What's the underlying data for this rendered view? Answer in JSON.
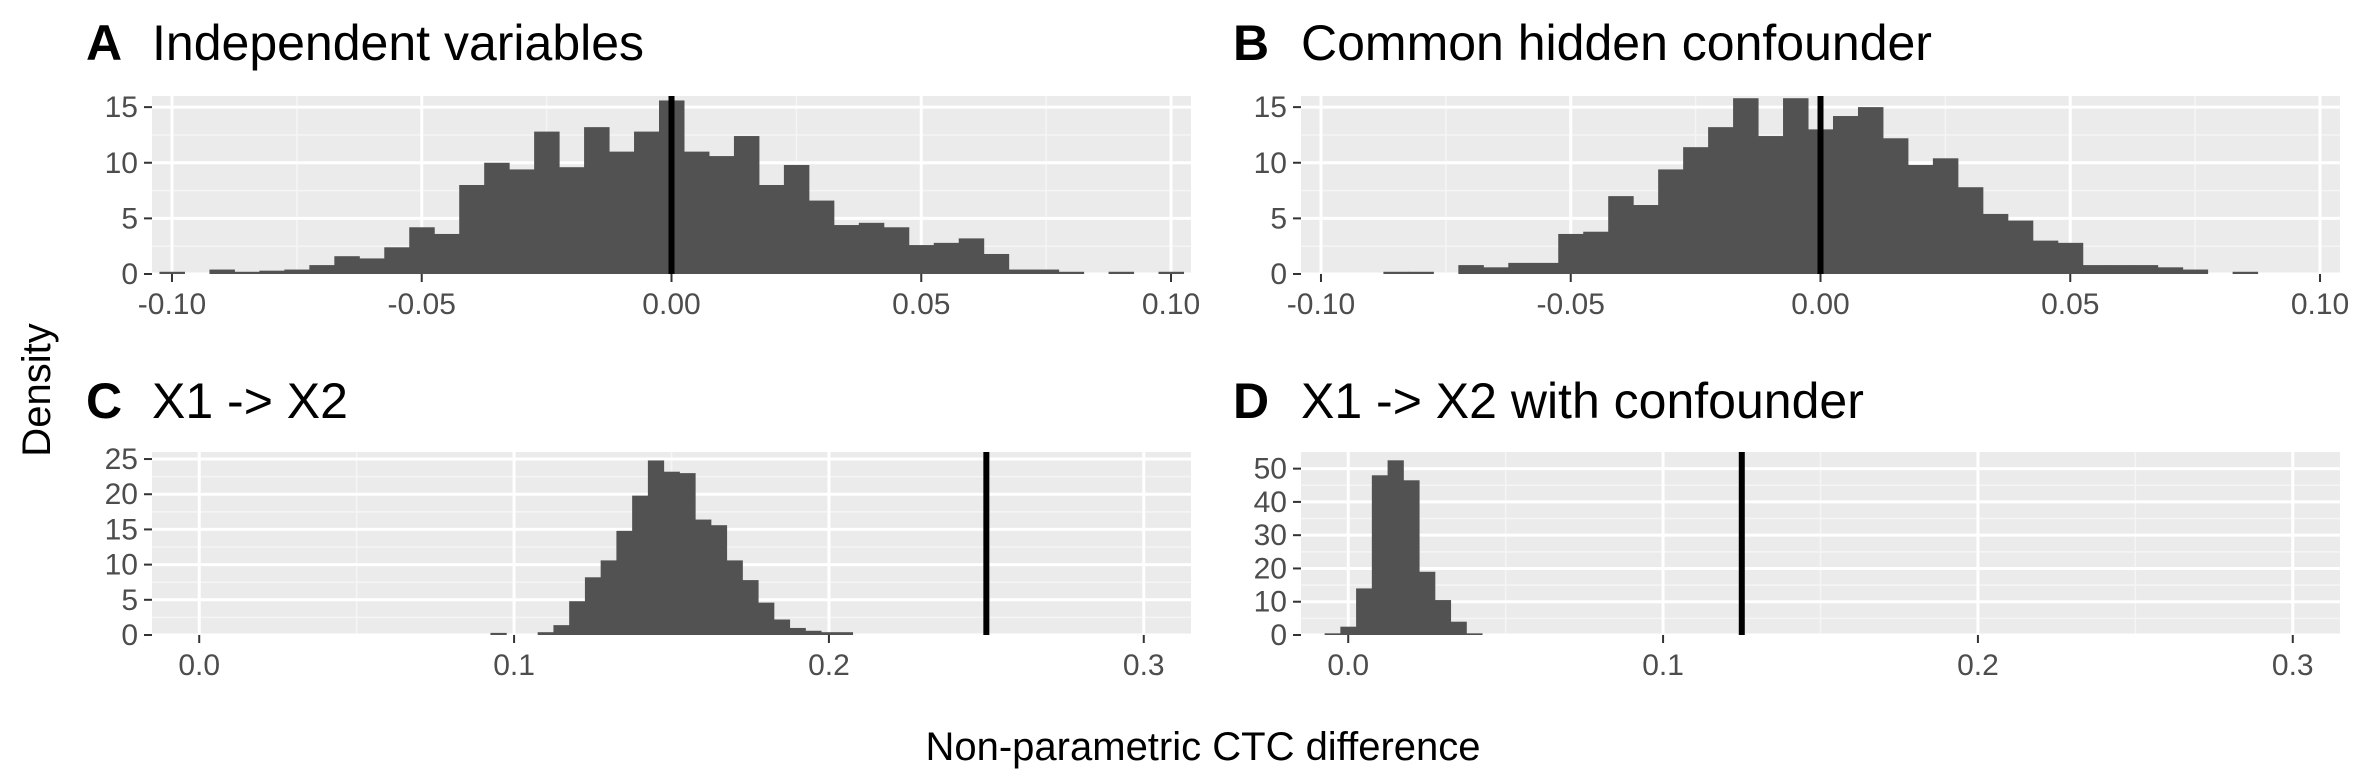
{
  "figure": {
    "xlabel": "Non-parametric CTC difference",
    "ylabel": "Density"
  },
  "colors": {
    "panel_background": "#ebebeb",
    "grid_major": "#ffffff",
    "grid_minor": "#f5f5f5",
    "bar_fill": "#525252",
    "reference_line": "#000000",
    "tick_text": "#4d4d4d"
  },
  "chart_data": [
    {
      "id": "A",
      "type": "bar",
      "letter": "A",
      "title": "Independent variables",
      "bin_width": 0.005,
      "x": [
        -0.1,
        -0.095,
        -0.09,
        -0.085,
        -0.08,
        -0.075,
        -0.07,
        -0.065,
        -0.06,
        -0.055,
        -0.05,
        -0.045,
        -0.04,
        -0.035,
        -0.03,
        -0.025,
        -0.02,
        -0.015,
        -0.01,
        -0.005,
        0.0,
        0.005,
        0.01,
        0.015,
        0.02,
        0.025,
        0.03,
        0.035,
        0.04,
        0.045,
        0.05,
        0.055,
        0.06,
        0.065,
        0.07,
        0.075,
        0.08,
        0.085,
        0.09,
        0.095,
        0.1
      ],
      "values": [
        0.2,
        0,
        0.4,
        0.2,
        0.3,
        0.4,
        0.8,
        1.6,
        1.4,
        2.4,
        4.2,
        3.6,
        8.0,
        10.0,
        9.4,
        12.8,
        9.6,
        13.2,
        11.0,
        12.8,
        15.6,
        11.0,
        10.6,
        12.4,
        8.0,
        9.8,
        6.6,
        4.4,
        4.6,
        4.2,
        2.6,
        2.8,
        3.2,
        1.8,
        0.4,
        0.4,
        0.2,
        0,
        0.2,
        0,
        0.2
      ],
      "xlim": [
        -0.104,
        0.104
      ],
      "ylim": [
        0,
        16
      ],
      "xticks": [
        -0.1,
        -0.05,
        0.0,
        0.05,
        0.1
      ],
      "xtick_labels": [
        "-0.10",
        "-0.05",
        "0.00",
        "0.05",
        "0.10"
      ],
      "yticks": [
        0,
        5,
        10,
        15
      ],
      "ytick_labels": [
        "0",
        "5",
        "10",
        "15"
      ],
      "xminor": [
        -0.075,
        -0.025,
        0.025,
        0.075
      ],
      "yminor": [
        2.5,
        7.5,
        12.5
      ],
      "vline": 0.0
    },
    {
      "id": "B",
      "type": "bar",
      "letter": "B",
      "title": "Common hidden confounder",
      "bin_width": 0.005,
      "x": [
        -0.1,
        -0.095,
        -0.09,
        -0.085,
        -0.08,
        -0.075,
        -0.07,
        -0.065,
        -0.06,
        -0.055,
        -0.05,
        -0.045,
        -0.04,
        -0.035,
        -0.03,
        -0.025,
        -0.02,
        -0.015,
        -0.01,
        -0.005,
        0.0,
        0.005,
        0.01,
        0.015,
        0.02,
        0.025,
        0.03,
        0.035,
        0.04,
        0.045,
        0.05,
        0.055,
        0.06,
        0.065,
        0.07,
        0.075,
        0.08,
        0.085,
        0.09,
        0.095,
        0.1
      ],
      "values": [
        0,
        0,
        0,
        0.2,
        0.2,
        0,
        0.8,
        0.6,
        1.0,
        1.0,
        3.6,
        3.8,
        7.0,
        6.2,
        9.4,
        11.4,
        13.2,
        15.8,
        12.4,
        15.8,
        13.0,
        14.2,
        15.0,
        12.2,
        9.8,
        10.4,
        7.8,
        5.4,
        4.8,
        3.0,
        2.8,
        0.8,
        0.8,
        0.8,
        0.6,
        0.4,
        0,
        0.2,
        0,
        0,
        0
      ],
      "xlim": [
        -0.104,
        0.104
      ],
      "ylim": [
        0,
        16
      ],
      "xticks": [
        -0.1,
        -0.05,
        0.0,
        0.05,
        0.1
      ],
      "xtick_labels": [
        "-0.10",
        "-0.05",
        "0.00",
        "0.05",
        "0.10"
      ],
      "yticks": [
        0,
        5,
        10,
        15
      ],
      "ytick_labels": [
        "0",
        "5",
        "10",
        "15"
      ],
      "xminor": [
        -0.075,
        -0.025,
        0.025,
        0.075
      ],
      "yminor": [
        2.5,
        7.5,
        12.5
      ],
      "vline": 0.0
    },
    {
      "id": "C",
      "type": "bar",
      "letter": "C",
      "title": "X1 -> X2",
      "bin_width": 0.005,
      "x": [
        0.095,
        0.1,
        0.105,
        0.11,
        0.115,
        0.12,
        0.125,
        0.13,
        0.135,
        0.14,
        0.145,
        0.15,
        0.155,
        0.16,
        0.165,
        0.17,
        0.175,
        0.18,
        0.185,
        0.19,
        0.195,
        0.2,
        0.205,
        0.21
      ],
      "values": [
        0.3,
        0,
        0,
        0.4,
        1.4,
        4.8,
        8.2,
        10.6,
        14.8,
        19.8,
        24.8,
        23.2,
        23.0,
        16.4,
        15.6,
        10.6,
        7.8,
        4.6,
        2.2,
        1.0,
        0.6,
        0.4,
        0.4,
        0
      ],
      "xlim": [
        -0.015,
        0.315
      ],
      "ylim": [
        0,
        26
      ],
      "xticks": [
        0.0,
        0.1,
        0.2,
        0.3
      ],
      "xtick_labels": [
        "0.0",
        "0.1",
        "0.2",
        "0.3"
      ],
      "yticks": [
        0,
        5,
        10,
        15,
        20,
        25
      ],
      "ytick_labels": [
        "0",
        "5",
        "10",
        "15",
        "20",
        "25"
      ],
      "xminor": [
        0.05,
        0.15,
        0.25
      ],
      "yminor": [
        2.5,
        7.5,
        12.5,
        17.5,
        22.5
      ],
      "vline": 0.25
    },
    {
      "id": "D",
      "type": "bar",
      "letter": "D",
      "title": "X1 -> X2 with confounder",
      "bin_width": 0.005,
      "x": [
        -0.005,
        0.0,
        0.005,
        0.01,
        0.015,
        0.02,
        0.025,
        0.03,
        0.035,
        0.04,
        0.045
      ],
      "values": [
        0.5,
        2.5,
        14.0,
        48.0,
        52.5,
        46.5,
        19.0,
        10.5,
        4.0,
        0.5,
        0
      ],
      "xlim": [
        -0.015,
        0.315
      ],
      "ylim": [
        0,
        55
      ],
      "xticks": [
        0.0,
        0.1,
        0.2,
        0.3
      ],
      "xtick_labels": [
        "0.0",
        "0.1",
        "0.2",
        "0.3"
      ],
      "yticks": [
        0,
        10,
        20,
        30,
        40,
        50
      ],
      "ytick_labels": [
        "0",
        "10",
        "20",
        "30",
        "40",
        "50"
      ],
      "xminor": [
        0.05,
        0.15,
        0.25
      ],
      "yminor": [
        5,
        15,
        25,
        35,
        45
      ],
      "vline": 0.125
    }
  ]
}
